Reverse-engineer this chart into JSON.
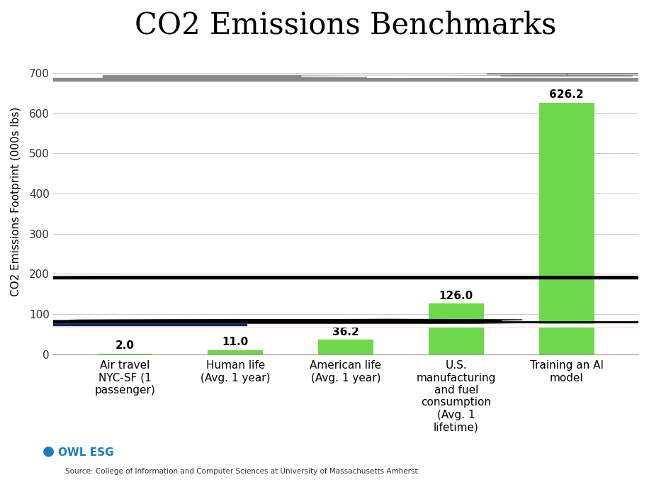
{
  "title": "CO2 Emissions Benchmarks",
  "ylabel": "CO2 Emissions Footprint (000s lbs)",
  "categories": [
    "Air travel\nNYC-SF (1\npassenger)",
    "Human life\n(Avg. 1 year)",
    "American life\n(Avg. 1 year)",
    "U.S.\nmanufacturing\nand fuel\nconsumption\n(Avg. 1\nlifetime)",
    "Training an AI\nmodel"
  ],
  "values": [
    2.0,
    11.0,
    36.2,
    126.0,
    626.2
  ],
  "bar_colors": [
    "#6dd84a",
    "#6dd84a",
    "#6dd84a",
    "#6dd84a",
    "#6dd84a"
  ],
  "value_labels": [
    "2.0",
    "11.0",
    "36.2",
    "126.0",
    "626.2"
  ],
  "ylim": [
    0,
    760
  ],
  "yticks": [
    0,
    100,
    200,
    300,
    400,
    500,
    600,
    700
  ],
  "source_text": "Source: College of Information and Computer Sciences at University of Massachusetts Amherst",
  "background_color": "#ffffff",
  "grid_color": "#cccccc",
  "title_fontsize": 30,
  "label_fontsize": 11,
  "tick_fontsize": 11,
  "value_fontsize": 11,
  "bar_width": 0.5,
  "owl_esg_color": "#1a7bbf"
}
